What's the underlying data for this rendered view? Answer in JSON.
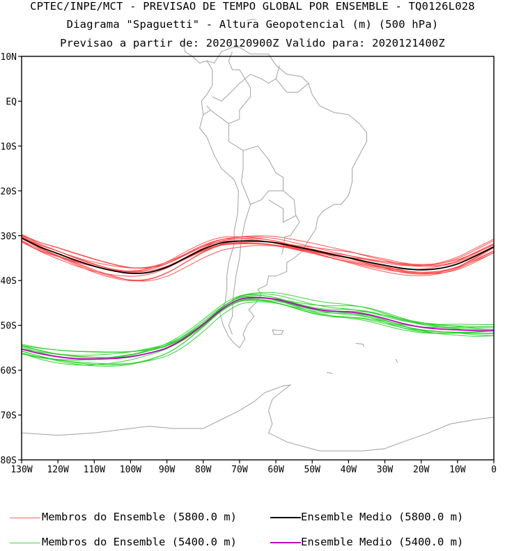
{
  "header": {
    "line1": "CPTEC/INPE/MCT - PREVISAO DE TEMPO GLOBAL POR ENSEMBLE - TQ0126L028",
    "line2": "Diagrama \"Spaguetti\" - Altura Geopotencial (m) (500 hPa)",
    "line3": "Previsao a partir de: 2020120900Z  Valido para: 2020121400Z"
  },
  "map": {
    "lon_range": [
      -130,
      0
    ],
    "lat_range": [
      -80,
      10
    ],
    "lat_labels": [
      "10N",
      "EQ",
      "10S",
      "20S",
      "30S",
      "40S",
      "50S",
      "60S",
      "70S",
      "80S"
    ],
    "lon_labels": [
      "130W",
      "120W",
      "110W",
      "100W",
      "90W",
      "80W",
      "70W",
      "60W",
      "50W",
      "40W",
      "30W",
      "20W",
      "10W",
      "0"
    ],
    "coastline_color": "#a0a0a0",
    "contours": [
      {
        "level": "5800",
        "member_color": "#ff4040",
        "mean_color": "#000000",
        "mean": [
          [
            -130,
            -30.5
          ],
          [
            -125,
            -32.5
          ],
          [
            -120,
            -34
          ],
          [
            -115,
            -35.5
          ],
          [
            -110,
            -36.8
          ],
          [
            -105,
            -37.8
          ],
          [
            -100,
            -38.4
          ],
          [
            -95,
            -38.2
          ],
          [
            -90,
            -37
          ],
          [
            -85,
            -35
          ],
          [
            -80,
            -33
          ],
          [
            -75,
            -31.6
          ],
          [
            -70,
            -31.2
          ],
          [
            -65,
            -31.2
          ],
          [
            -60,
            -31.6
          ],
          [
            -55,
            -32.4
          ],
          [
            -50,
            -33.2
          ],
          [
            -45,
            -34.1
          ],
          [
            -40,
            -34.9
          ],
          [
            -35,
            -35.8
          ],
          [
            -30,
            -36.6
          ],
          [
            -25,
            -37.3
          ],
          [
            -20,
            -37.6
          ],
          [
            -15,
            -37.3
          ],
          [
            -10,
            -36.3
          ],
          [
            -5,
            -34.5
          ],
          [
            0,
            -32.5
          ]
        ],
        "member_offsets": [
          -1.6,
          -1.1,
          -0.7,
          -0.3,
          0.2,
          0.6,
          1.0,
          1.5,
          -0.9,
          0.8,
          -0.4,
          1.2
        ]
      },
      {
        "level": "5400",
        "member_color": "#20d020",
        "mean_color": "#c000c0",
        "mean": [
          [
            -130,
            -55.3
          ],
          [
            -125,
            -56.3
          ],
          [
            -120,
            -57
          ],
          [
            -115,
            -57.4
          ],
          [
            -110,
            -57.5
          ],
          [
            -105,
            -57.4
          ],
          [
            -100,
            -57
          ],
          [
            -95,
            -56.2
          ],
          [
            -90,
            -55
          ],
          [
            -85,
            -52.8
          ],
          [
            -80,
            -49.8
          ],
          [
            -75,
            -46.5
          ],
          [
            -70,
            -44.2
          ],
          [
            -65,
            -43.8
          ],
          [
            -60,
            -44.2
          ],
          [
            -55,
            -45.2
          ],
          [
            -50,
            -46.2
          ],
          [
            -45,
            -46.8
          ],
          [
            -40,
            -47
          ],
          [
            -35,
            -47.5
          ],
          [
            -30,
            -48.5
          ],
          [
            -25,
            -49.6
          ],
          [
            -20,
            -50.4
          ],
          [
            -15,
            -50.8
          ],
          [
            -10,
            -51
          ],
          [
            -5,
            -51.2
          ],
          [
            0,
            -51.2
          ]
        ],
        "member_offsets": [
          -1.6,
          -1.2,
          -0.8,
          -0.4,
          0.1,
          0.5,
          0.9,
          1.4,
          -1.0,
          0.7,
          -0.2,
          1.1
        ]
      }
    ]
  },
  "legend": {
    "members_5800": "Membros do Ensemble (5800.0 m)",
    "mean_5800": "Ensemble Medio (5800.0 m)",
    "members_5400": "Membros do Ensemble (5400.0 m)",
    "mean_5400": "Ensemble Medio (5400.0 m)",
    "colors": {
      "members_5800": "#ff6060",
      "mean_5800": "#000000",
      "members_5400": "#40d840",
      "mean_5400": "#c000c0"
    }
  }
}
